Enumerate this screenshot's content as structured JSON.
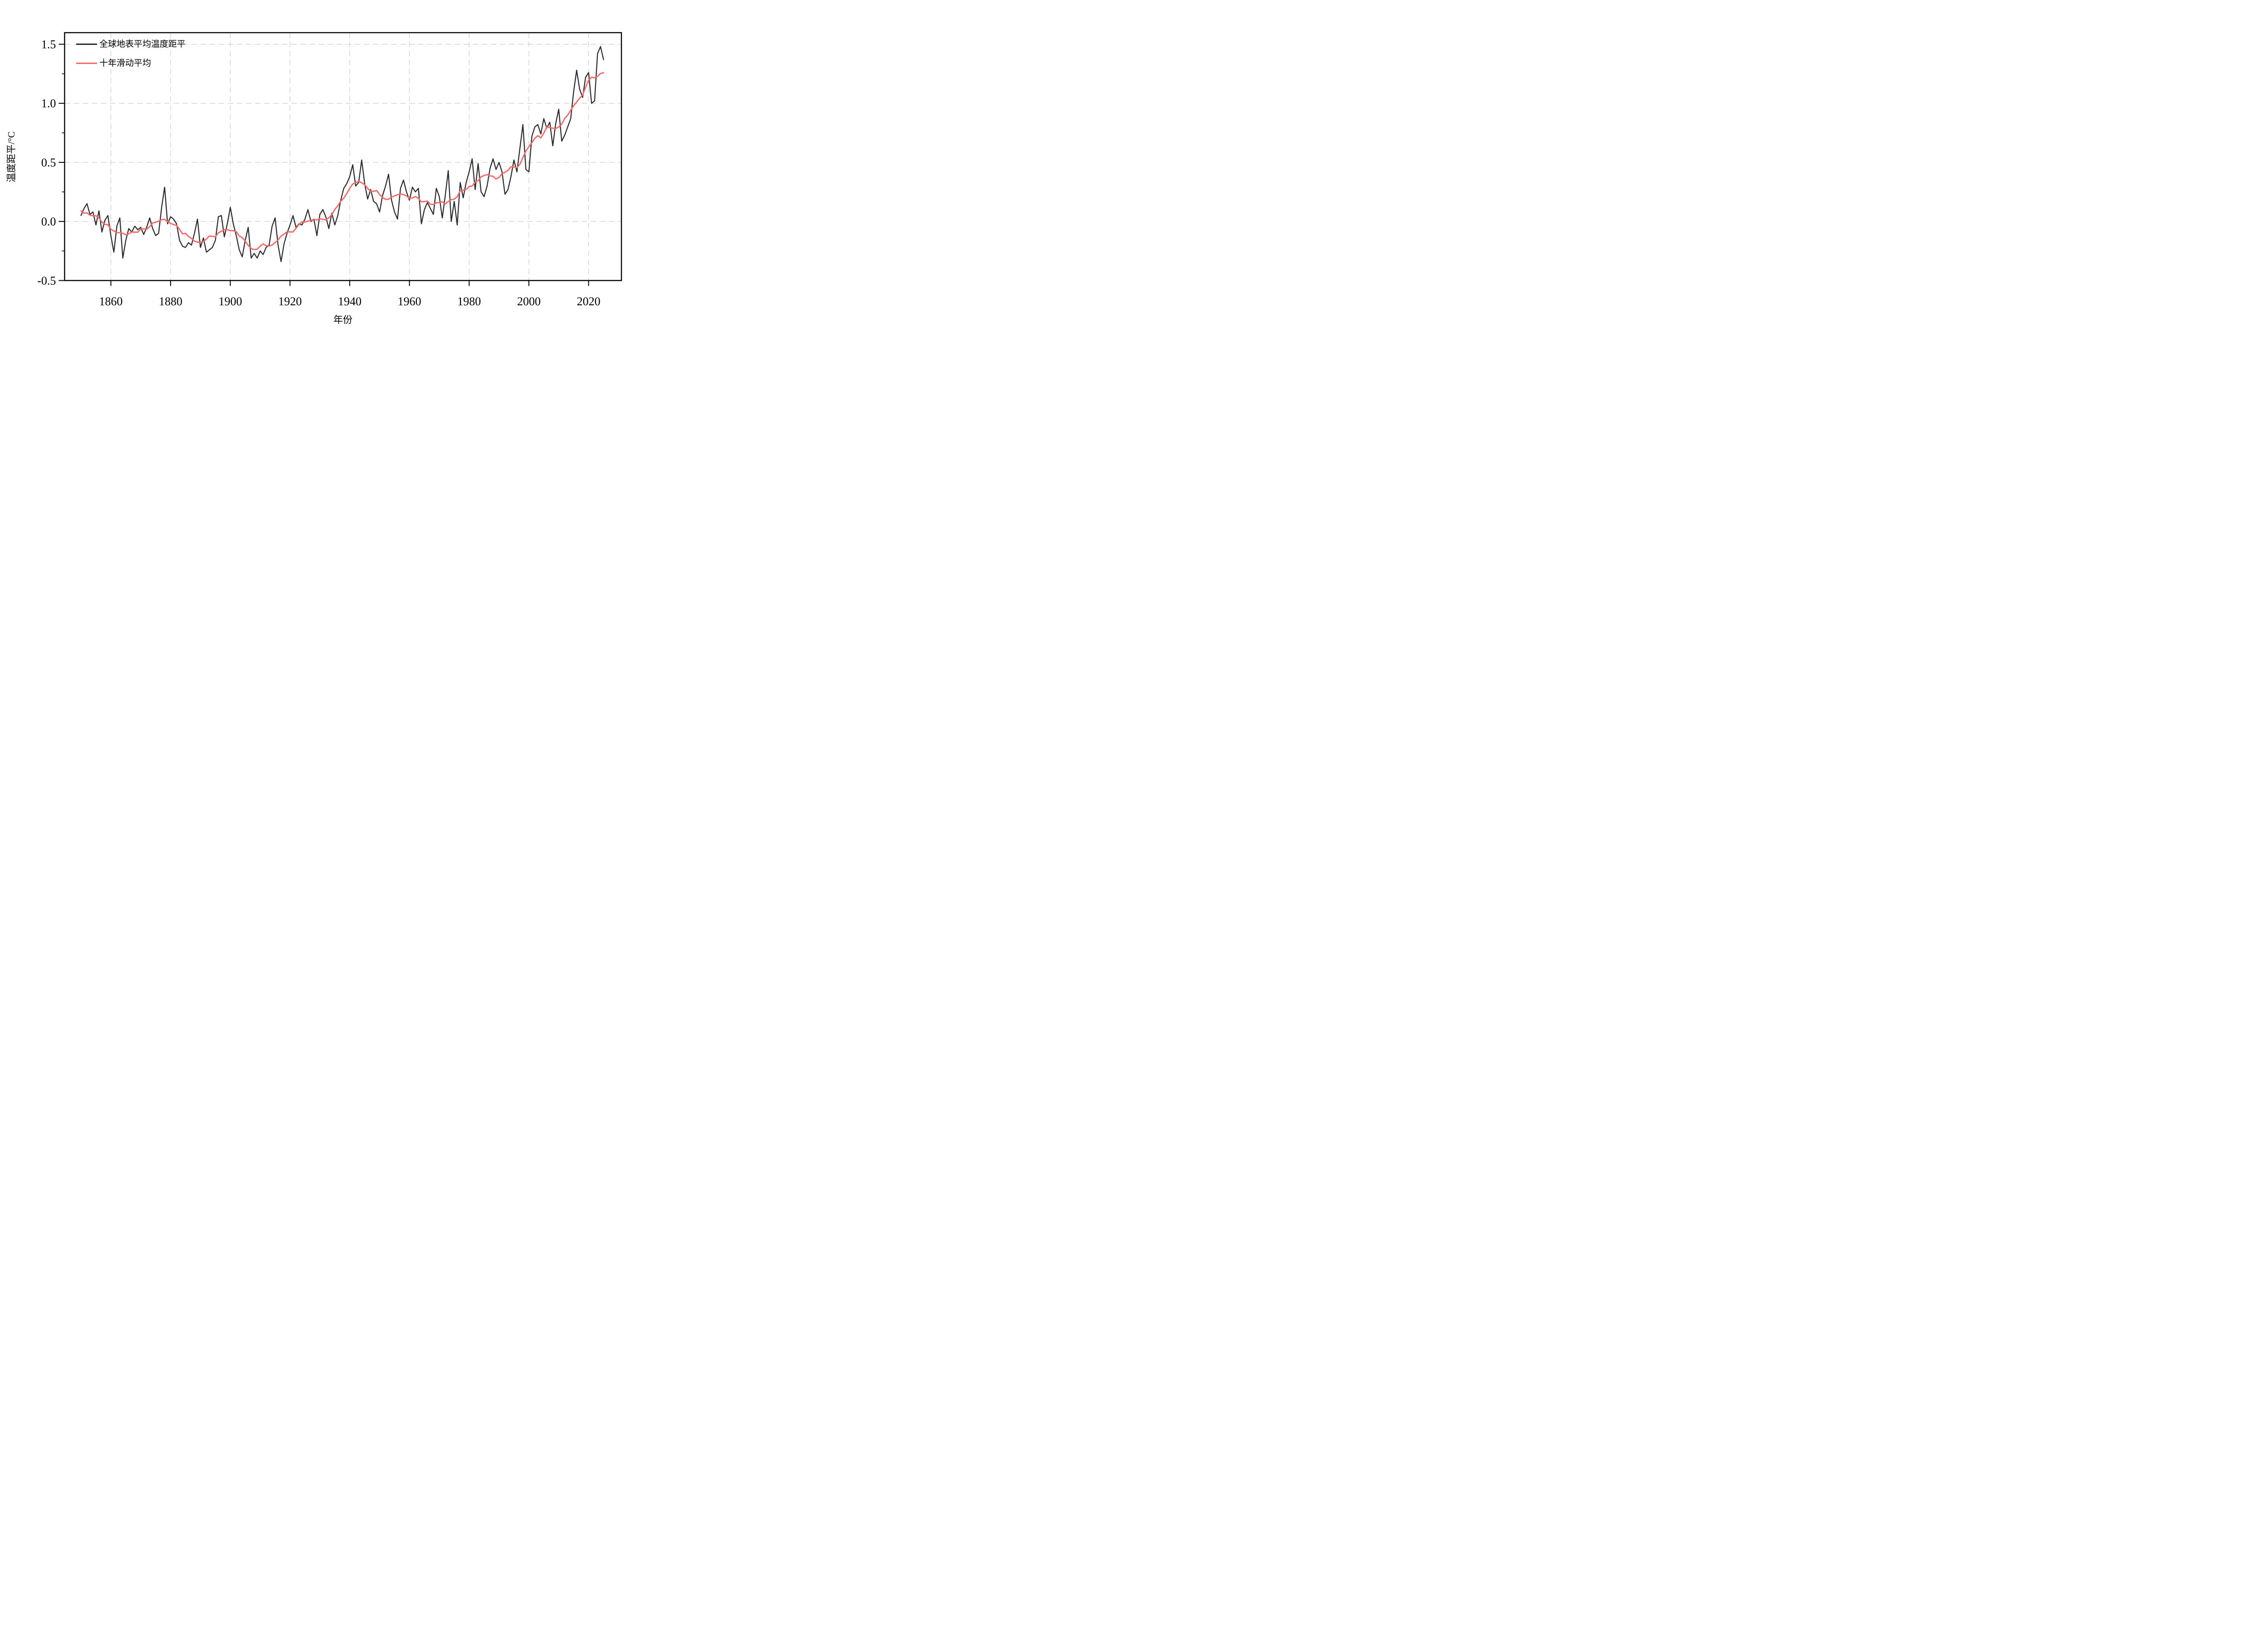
{
  "chart_data": {
    "type": "line",
    "title": "",
    "xlabel": "年份",
    "ylabel": "温度距平/°C",
    "grid": "dashed-gray-both-axes",
    "legend_position": "top-left-inside",
    "xlim": [
      1844.5,
      2031
    ],
    "ylim": [
      -0.5,
      1.598
    ],
    "x_ticks": [
      1860,
      1880,
      1900,
      1920,
      1940,
      1960,
      1980,
      2000,
      2020
    ],
    "x_tick_labels": [
      "1860",
      "1880",
      "1900",
      "1920",
      "1940",
      "1960",
      "1980",
      "2000",
      "2020"
    ],
    "y_ticks": [
      -0.5,
      0.0,
      0.5,
      1.0,
      1.5
    ],
    "y_tick_labels": [
      "-0.5",
      "0.0",
      "0.5",
      "1.0",
      "1.5"
    ],
    "y_minor_tick_step": 0.25,
    "start_year": 1850,
    "end_year": 2025,
    "series": [
      {
        "name": "全球地表平均温度距平",
        "color": "#2b2b2b",
        "kind": "annual",
        "values": [
          0.05,
          0.11,
          0.15,
          0.06,
          0.08,
          -0.03,
          0.09,
          -0.09,
          0.01,
          0.05,
          -0.12,
          -0.26,
          -0.04,
          0.03,
          -0.31,
          -0.16,
          -0.06,
          -0.09,
          -0.04,
          -0.07,
          -0.05,
          -0.11,
          -0.05,
          0.03,
          -0.06,
          -0.12,
          -0.1,
          0.12,
          0.29,
          -0.02,
          0.04,
          0.02,
          -0.02,
          -0.16,
          -0.21,
          -0.22,
          -0.18,
          -0.2,
          -0.1,
          0.02,
          -0.22,
          -0.14,
          -0.26,
          -0.24,
          -0.22,
          -0.16,
          0.04,
          0.05,
          -0.13,
          -0.02,
          0.12,
          -0.02,
          -0.12,
          -0.24,
          -0.3,
          -0.16,
          -0.05,
          -0.31,
          -0.27,
          -0.31,
          -0.25,
          -0.28,
          -0.22,
          -0.2,
          -0.04,
          0.03,
          -0.2,
          -0.34,
          -0.19,
          -0.1,
          -0.03,
          0.05,
          -0.05,
          -0.02,
          -0.03,
          0.02,
          0.1,
          0.0,
          0.02,
          -0.12,
          0.06,
          0.1,
          0.04,
          -0.06,
          0.07,
          -0.03,
          0.05,
          0.18,
          0.28,
          0.32,
          0.38,
          0.48,
          0.3,
          0.33,
          0.52,
          0.32,
          0.19,
          0.27,
          0.17,
          0.15,
          0.08,
          0.22,
          0.3,
          0.4,
          0.18,
          0.08,
          0.02,
          0.28,
          0.35,
          0.25,
          0.18,
          0.29,
          0.25,
          0.28,
          -0.02,
          0.1,
          0.16,
          0.11,
          0.06,
          0.28,
          0.21,
          0.03,
          0.22,
          0.43,
          0.0,
          0.17,
          -0.03,
          0.33,
          0.2,
          0.33,
          0.42,
          0.53,
          0.27,
          0.49,
          0.25,
          0.21,
          0.3,
          0.45,
          0.53,
          0.44,
          0.5,
          0.42,
          0.23,
          0.27,
          0.38,
          0.52,
          0.42,
          0.62,
          0.82,
          0.44,
          0.42,
          0.72,
          0.8,
          0.82,
          0.74,
          0.87,
          0.79,
          0.84,
          0.64,
          0.83,
          0.95,
          0.68,
          0.73,
          0.8,
          0.87,
          1.1,
          1.28,
          1.12,
          1.05,
          1.22,
          1.26,
          1.0,
          1.02,
          1.42,
          1.48,
          1.37
        ]
      },
      {
        "name": "十年滑动平均",
        "color": "#f5696b",
        "kind": "10yr_moving_average",
        "derived_from": "annual",
        "window": 10
      }
    ]
  },
  "axes": {
    "x_label": "年份",
    "y_label": "温度距平/°C"
  },
  "legend": {
    "items": [
      {
        "label": "全球地表平均温度距平",
        "color": "#2b2b2b"
      },
      {
        "label": "十年滑动平均",
        "color": "#f5696b"
      }
    ]
  },
  "colors": {
    "annual_line": "#2b2b2b",
    "moving_average_line": "#f5696b",
    "gridline": "#c0c0c0",
    "axis": "#000000",
    "background": "#ffffff"
  }
}
